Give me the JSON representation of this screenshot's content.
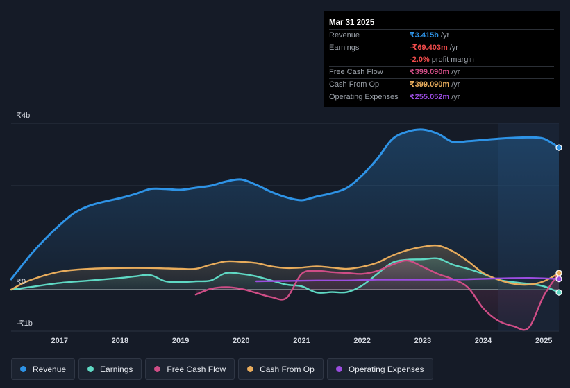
{
  "tooltip": {
    "date": "Mar 31 2025",
    "rows": [
      {
        "label": "Revenue",
        "value": "₹3.415b",
        "unit": "/yr",
        "color": "#2e93e6"
      },
      {
        "label": "Earnings",
        "value": "-₹69.403m",
        "unit": "/yr",
        "color": "#f04b4b"
      },
      {
        "label": "",
        "value": "-2.0%",
        "unit": "profit margin",
        "color": "#f04b4b"
      },
      {
        "label": "Free Cash Flow",
        "value": "₹399.090m",
        "unit": "/yr",
        "color": "#cf4d86"
      },
      {
        "label": "Cash From Op",
        "value": "₹399.090m",
        "unit": "/yr",
        "color": "#e8ac5c"
      },
      {
        "label": "Operating Expenses",
        "value": "₹255.052m",
        "unit": "/yr",
        "color": "#9b4de0"
      }
    ]
  },
  "legend": [
    {
      "label": "Revenue",
      "color": "#2e93e6"
    },
    {
      "label": "Earnings",
      "color": "#5fd9c4"
    },
    {
      "label": "Free Cash Flow",
      "color": "#cf4d86"
    },
    {
      "label": "Cash From Op",
      "color": "#e8ac5c"
    },
    {
      "label": "Operating Expenses",
      "color": "#9b4de0"
    }
  ],
  "chart_data": {
    "type": "area",
    "title": "",
    "xlabel": "",
    "ylabel": "",
    "y_tick_labels": [
      "₹4b",
      "₹0",
      "-₹1b"
    ],
    "y_ticks": [
      4,
      0,
      -1
    ],
    "ylim": [
      -1,
      4
    ],
    "xlim": [
      2016.2,
      2025.25
    ],
    "x_tick_labels": [
      "2017",
      "2018",
      "2019",
      "2020",
      "2021",
      "2022",
      "2023",
      "2024",
      "2025"
    ],
    "x_ticks": [
      2017,
      2018,
      2019,
      2020,
      2021,
      2022,
      2023,
      2024,
      2025
    ],
    "highlight_from": 2024.25,
    "units": "₹b",
    "series": [
      {
        "name": "Revenue",
        "color": "#2e93e6",
        "fill": true,
        "x": [
          2016.2,
          2016.5,
          2016.75,
          2017.0,
          2017.25,
          2017.5,
          2017.75,
          2018.0,
          2018.25,
          2018.5,
          2018.75,
          2019.0,
          2019.25,
          2019.5,
          2019.75,
          2020.0,
          2020.25,
          2020.5,
          2020.75,
          2021.0,
          2021.25,
          2021.5,
          2021.75,
          2022.0,
          2022.25,
          2022.5,
          2022.75,
          2023.0,
          2023.25,
          2023.5,
          2023.75,
          2024.0,
          2024.25,
          2024.5,
          2024.75,
          2025.0,
          2025.25
        ],
        "values": [
          0.25,
          0.8,
          1.2,
          1.55,
          1.85,
          2.02,
          2.12,
          2.2,
          2.3,
          2.42,
          2.42,
          2.4,
          2.45,
          2.5,
          2.6,
          2.65,
          2.52,
          2.35,
          2.22,
          2.15,
          2.24,
          2.32,
          2.45,
          2.75,
          3.15,
          3.62,
          3.8,
          3.85,
          3.75,
          3.55,
          3.57,
          3.6,
          3.63,
          3.65,
          3.66,
          3.63,
          3.415
        ]
      },
      {
        "name": "Earnings",
        "color": "#5fd9c4",
        "fill": true,
        "x": [
          2016.2,
          2016.5,
          2017.0,
          2017.5,
          2018.0,
          2018.25,
          2018.5,
          2018.75,
          2019.0,
          2019.25,
          2019.5,
          2019.75,
          2020.0,
          2020.25,
          2020.5,
          2020.75,
          2021.0,
          2021.25,
          2021.5,
          2021.75,
          2022.0,
          2022.25,
          2022.5,
          2022.75,
          2023.0,
          2023.25,
          2023.5,
          2023.75,
          2024.0,
          2024.25,
          2024.5,
          2024.75,
          2025.0,
          2025.25
        ],
        "values": [
          0.0,
          0.06,
          0.16,
          0.22,
          0.28,
          0.32,
          0.35,
          0.2,
          0.18,
          0.2,
          0.22,
          0.4,
          0.38,
          0.32,
          0.22,
          0.12,
          0.08,
          -0.07,
          -0.06,
          -0.06,
          0.1,
          0.38,
          0.65,
          0.72,
          0.73,
          0.75,
          0.6,
          0.5,
          0.38,
          0.24,
          0.18,
          0.14,
          0.08,
          -0.069
        ]
      },
      {
        "name": "Free Cash Flow",
        "color": "#cf4d86",
        "fill": true,
        "x": [
          2019.25,
          2019.5,
          2019.75,
          2020.0,
          2020.25,
          2020.5,
          2020.75,
          2021.0,
          2021.25,
          2021.5,
          2021.75,
          2022.0,
          2022.25,
          2022.5,
          2022.75,
          2023.0,
          2023.25,
          2023.5,
          2023.75,
          2024.0,
          2024.25,
          2024.5,
          2024.75,
          2025.0,
          2025.25
        ],
        "values": [
          -0.12,
          0.02,
          0.06,
          0.02,
          -0.08,
          -0.18,
          -0.2,
          0.38,
          0.45,
          0.42,
          0.4,
          0.38,
          0.45,
          0.6,
          0.7,
          0.55,
          0.38,
          0.25,
          0.05,
          -0.45,
          -0.75,
          -0.88,
          -0.92,
          -0.15,
          0.399
        ]
      },
      {
        "name": "Cash From Op",
        "color": "#e8ac5c",
        "fill": true,
        "x": [
          2016.2,
          2016.5,
          2017.0,
          2017.5,
          2018.0,
          2018.5,
          2019.0,
          2019.25,
          2019.5,
          2019.75,
          2020.0,
          2020.25,
          2020.5,
          2020.75,
          2021.0,
          2021.25,
          2021.5,
          2021.75,
          2022.0,
          2022.25,
          2022.5,
          2022.75,
          2023.0,
          2023.25,
          2023.5,
          2023.75,
          2024.0,
          2024.25,
          2024.5,
          2024.75,
          2025.0,
          2025.25
        ],
        "values": [
          0.0,
          0.22,
          0.43,
          0.5,
          0.52,
          0.52,
          0.5,
          0.5,
          0.6,
          0.68,
          0.67,
          0.64,
          0.56,
          0.52,
          0.53,
          0.56,
          0.53,
          0.5,
          0.55,
          0.65,
          0.82,
          0.95,
          1.03,
          1.06,
          0.92,
          0.68,
          0.4,
          0.24,
          0.14,
          0.12,
          0.2,
          0.399
        ]
      },
      {
        "name": "Operating Expenses",
        "color": "#9b4de0",
        "fill": false,
        "x": [
          2020.25,
          2020.75,
          2021.25,
          2021.75,
          2022.25,
          2022.75,
          2023.25,
          2023.75,
          2024.25,
          2024.75,
          2025.25
        ],
        "values": [
          0.2,
          0.21,
          0.22,
          0.22,
          0.24,
          0.24,
          0.24,
          0.25,
          0.27,
          0.28,
          0.255
        ]
      }
    ]
  }
}
